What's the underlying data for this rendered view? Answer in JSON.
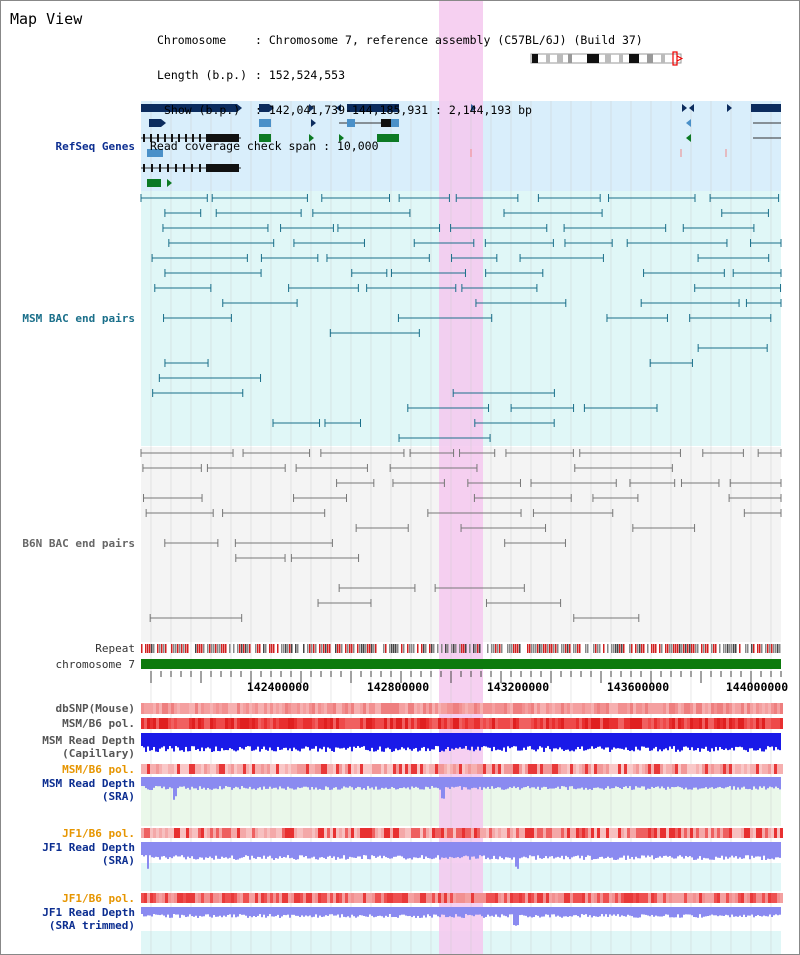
{
  "page_title": "Map View",
  "info": {
    "chromosome_label": "Chromosome",
    "chromosome_value": "Chromosome 7, reference assembly (C57BL/6J) (Build 37)",
    "length_label": "Length (b.p.)",
    "length_value": "152,524,553",
    "show_label": "Show (b.p.)",
    "show_value": "142,041,739-144,185,931 : 2,144,193 bp",
    "span_label": "Read coverage check span",
    "span_value": "10,000"
  },
  "tracks": {
    "refseq": "RefSeq Genes",
    "msm_bac": "MSM BAC end pairs",
    "b6n_bac": "B6N BAC end pairs",
    "repeat": "Repeat",
    "chromosome": "chromosome 7",
    "dbsnp": "dbSNP(Mouse)",
    "msm_b6_pol_1": "MSM/B6 pol.",
    "msm_read_depth_cap": "MSM Read Depth\n(Capillary)",
    "msm_b6_pol_2": "MSM/B6 pol.",
    "msm_read_depth_sra": "MSM Read Depth\n(SRA)",
    "jf1_b6_pol_1": "JF1/B6 pol.",
    "jf1_read_depth_sra": "JF1 Read Depth\n(SRA)",
    "jf1_b6_pol_2": "JF1/B6 pol.",
    "jf1_read_depth_trim": "JF1 Read Depth\n(SRA trimmed)"
  },
  "axis": {
    "ticks": [
      "142400000",
      "142800000",
      "143200000",
      "143600000",
      "144000000"
    ]
  },
  "colors": {
    "highlight": "#f4c8ee",
    "refseq_bg": "#d9eefb",
    "msm_bg": "#e0f7f7",
    "dark_gene": "#0c2c5e",
    "light_gene": "#4a90c8",
    "green_gene": "#0c7a24",
    "msm_bac": "#1a6f8a",
    "b6n_bac": "#777777",
    "chromosome_bar": "#0d7a0d",
    "snp_red": "#e02020",
    "depth_blue": "#1a1ae8",
    "depth_light": "#8a8af0"
  }
}
